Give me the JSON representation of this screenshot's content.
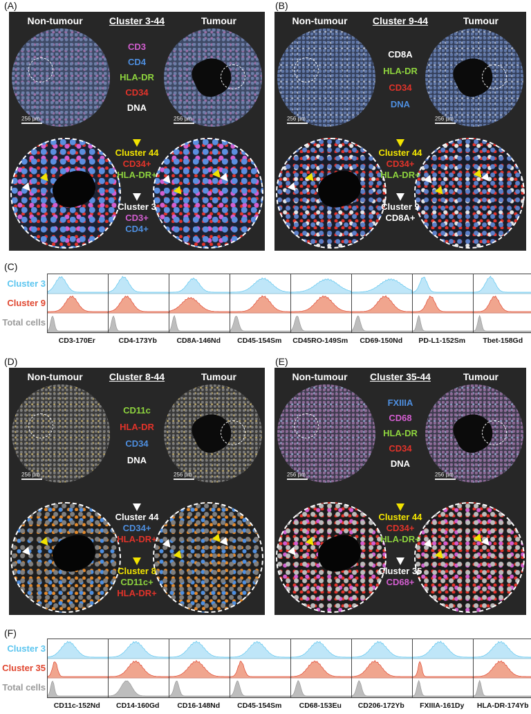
{
  "panels": [
    {
      "label": "(A)",
      "left": "Non-tumour",
      "cluster": "Cluster 3-44",
      "right": "Tumour",
      "markers": [
        {
          "t": "CD3",
          "c": "#d35ed0"
        },
        {
          "t": "CD4",
          "c": "#4e8fe0"
        },
        {
          "t": "HLA-DR",
          "c": "#8ed43e"
        },
        {
          "t": "CD34",
          "c": "#e2332a"
        },
        {
          "t": "DNA",
          "c": "#ffffff"
        }
      ],
      "scale": [
        "256 µm",
        "256 µm"
      ],
      "groups": [
        {
          "arrow": "yellow",
          "lines": [
            {
              "t": "Cluster 44",
              "c": "#f3e600"
            },
            {
              "t": "CD34+",
              "c": "#e2332a"
            },
            {
              "t": "HLA-DR+",
              "c": "#8ed43e"
            }
          ]
        },
        {
          "arrow": "white",
          "lines": [
            {
              "t": "Cluster 3",
              "c": "#ffffff"
            },
            {
              "t": "CD3+",
              "c": "#d35ed0"
            },
            {
              "t": "CD4+",
              "c": "#4e8fe0"
            }
          ]
        }
      ]
    },
    {
      "label": "(B)",
      "left": "Non-tumour",
      "cluster": "Cluster 9-44",
      "right": "Tumour",
      "markers": [
        {
          "t": "CD8A",
          "c": "#ffffff"
        },
        {
          "t": "HLA-DR",
          "c": "#8ed43e"
        },
        {
          "t": "CD34",
          "c": "#e2332a"
        },
        {
          "t": "DNA",
          "c": "#4e8fe0"
        }
      ],
      "scale": [
        "256 µm",
        "256 µm"
      ],
      "groups": [
        {
          "arrow": "yellow",
          "lines": [
            {
              "t": "Cluster 44",
              "c": "#f3e600"
            },
            {
              "t": "CD34+",
              "c": "#e2332a"
            },
            {
              "t": "HLA-DR+",
              "c": "#8ed43e"
            }
          ]
        },
        {
          "arrow": "white",
          "lines": [
            {
              "t": "Cluster 9",
              "c": "#ffffff"
            },
            {
              "t": "CD8A+",
              "c": "#ffffff"
            }
          ]
        }
      ]
    },
    {
      "label": "(D)",
      "left": "Non-tumour",
      "cluster": "Cluster 8-44",
      "right": "Tumour",
      "markers": [
        {
          "t": "CD11c",
          "c": "#8ed43e"
        },
        {
          "t": "HLA-DR",
          "c": "#e2332a"
        },
        {
          "t": "CD34",
          "c": "#4e8fe0"
        },
        {
          "t": "DNA",
          "c": "#ffffff"
        }
      ],
      "scale": [
        "256 µm",
        "256 µm"
      ],
      "groups": [
        {
          "arrow": "white",
          "lines": [
            {
              "t": "Cluster 44",
              "c": "#ffffff"
            },
            {
              "t": "CD34+",
              "c": "#4e8fe0"
            },
            {
              "t": "HLA-DR+",
              "c": "#e2332a"
            }
          ]
        },
        {
          "arrow": "yellow",
          "lines": [
            {
              "t": "Cluster 8",
              "c": "#f3e600"
            },
            {
              "t": "CD11c+",
              "c": "#8ed43e"
            },
            {
              "t": "HLA-DR+",
              "c": "#e2332a"
            }
          ]
        }
      ]
    },
    {
      "label": "(E)",
      "left": "Non-tumour",
      "cluster": "Cluster 35-44",
      "right": "Tumour",
      "markers": [
        {
          "t": "FXIIIA",
          "c": "#4e8fe0"
        },
        {
          "t": "CD68",
          "c": "#d35ed0"
        },
        {
          "t": "HLA-DR",
          "c": "#8ed43e"
        },
        {
          "t": "CD34",
          "c": "#e2332a"
        },
        {
          "t": "DNA",
          "c": "#ffffff"
        }
      ],
      "scale": [
        "256 µm",
        "256 µm"
      ],
      "groups": [
        {
          "arrow": "yellow",
          "lines": [
            {
              "t": "Cluster 44",
              "c": "#f3e600"
            },
            {
              "t": "CD34+",
              "c": "#e2332a"
            },
            {
              "t": "HLA-DR+",
              "c": "#8ed43e"
            }
          ]
        },
        {
          "arrow": "white",
          "lines": [
            {
              "t": "Cluster 35",
              "c": "#ffffff"
            },
            {
              "t": "CD68+",
              "c": "#d35ed0"
            }
          ]
        }
      ]
    }
  ],
  "histC": {
    "label": "(C)",
    "rows": [
      {
        "t": "Cluster 3",
        "c": "#5bc5ef",
        "fill": "#bfe6f8"
      },
      {
        "t": "Cluster 9",
        "c": "#e0462f",
        "fill": "#f0a58e"
      },
      {
        "t": "Total cells",
        "c": "#9a9a9a",
        "fill": "#bdbdbd"
      }
    ],
    "channels": [
      "CD3-170Er",
      "CD4-173Yb",
      "CD8A-146Nd",
      "CD45-154Sm",
      "CD45RO-149Sm",
      "CD69-150Nd",
      "PD-L1-152Sm",
      "Tbet-158Gd"
    ]
  },
  "histF": {
    "label": "(F)",
    "rows": [
      {
        "t": "Cluster 3",
        "c": "#5bc5ef",
        "fill": "#bfe6f8"
      },
      {
        "t": "Cluster 35",
        "c": "#e0462f",
        "fill": "#f0a58e"
      },
      {
        "t": "Total cells",
        "c": "#9a9a9a",
        "fill": "#bdbdbd"
      }
    ],
    "channels": [
      "CD11c-152Nd",
      "CD14-160Gd",
      "CD16-148Nd",
      "CD45-154Sm",
      "CD68-153Eu",
      "CD206-172Yb",
      "FXIIIA-161Dy",
      "HLA-DR-174Yb"
    ]
  }
}
